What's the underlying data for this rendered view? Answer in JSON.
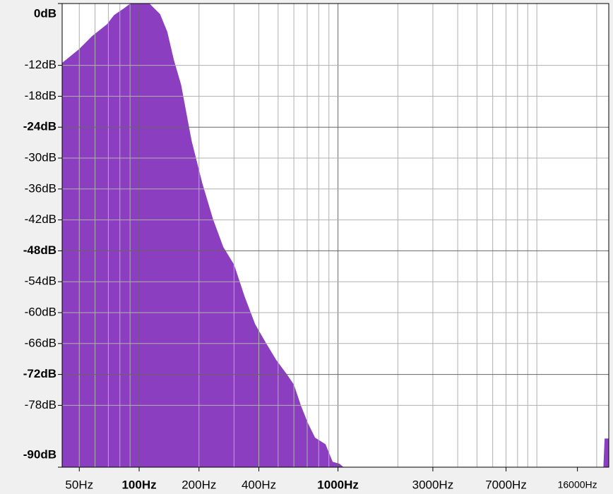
{
  "chart_data": {
    "type": "area",
    "xscale": "log",
    "xlim": [
      41,
      23000
    ],
    "ylim": [
      -90,
      0
    ],
    "color": "#8b3fc0",
    "grid": true,
    "xticks": [
      {
        "value": 50,
        "label": "50Hz"
      },
      {
        "value": 100,
        "label": "100Hz"
      },
      {
        "value": 200,
        "label": "200Hz"
      },
      {
        "value": 400,
        "label": "400Hz"
      },
      {
        "value": 1000,
        "label": "1000Hz"
      },
      {
        "value": 3000,
        "label": "3000Hz"
      },
      {
        "value": 7000,
        "label": "7000Hz"
      },
      {
        "value": 16000,
        "label": "16000Hz"
      }
    ],
    "xgrid": [
      50,
      60,
      70,
      80,
      90,
      100,
      200,
      300,
      400,
      500,
      600,
      700,
      800,
      900,
      1000,
      2000,
      3000,
      4000,
      5000,
      6000,
      7000,
      8000,
      9000,
      10000,
      20000
    ],
    "bold_xticks": [
      100,
      1000
    ],
    "yticks": [
      {
        "value": 0,
        "label": "0dB"
      },
      {
        "value": -12,
        "label": "-12dB"
      },
      {
        "value": -18,
        "label": "-18dB"
      },
      {
        "value": -24,
        "label": "-24dB"
      },
      {
        "value": -30,
        "label": "-30dB"
      },
      {
        "value": -36,
        "label": "-36dB"
      },
      {
        "value": -42,
        "label": "-42dB"
      },
      {
        "value": -48,
        "label": "-48dB"
      },
      {
        "value": -54,
        "label": "-54dB"
      },
      {
        "value": -60,
        "label": "-60dB"
      },
      {
        "value": -66,
        "label": "-66dB"
      },
      {
        "value": -72,
        "label": "-72dB"
      },
      {
        "value": -78,
        "label": "-78dB"
      },
      {
        "value": -90,
        "label": "-90dB"
      }
    ],
    "bold_yticks": [
      0,
      -24,
      -48,
      -72,
      -90
    ],
    "x": [
      41,
      50,
      58,
      69,
      75,
      84,
      91,
      112,
      127,
      138,
      149,
      162,
      172,
      183,
      207,
      234,
      264,
      299,
      338,
      382,
      431,
      487,
      551,
      598,
      649,
      704,
      764,
      863,
      937,
      1016,
      1059,
      1100,
      21700,
      22000,
      23000
    ],
    "values": [
      -11.6,
      -8.9,
      -6.4,
      -4.1,
      -2.3,
      -1.0,
      0,
      0,
      -2.1,
      -5.5,
      -11.0,
      -15.8,
      -21.2,
      -26.7,
      -34.9,
      -41.8,
      -47.3,
      -50.7,
      -56.9,
      -62.3,
      -65.8,
      -69.2,
      -72.0,
      -74.0,
      -78.1,
      -81.5,
      -84.3,
      -85.6,
      -89.0,
      -89.4,
      -90,
      -90,
      -90,
      -84.5,
      -84.5
    ]
  }
}
